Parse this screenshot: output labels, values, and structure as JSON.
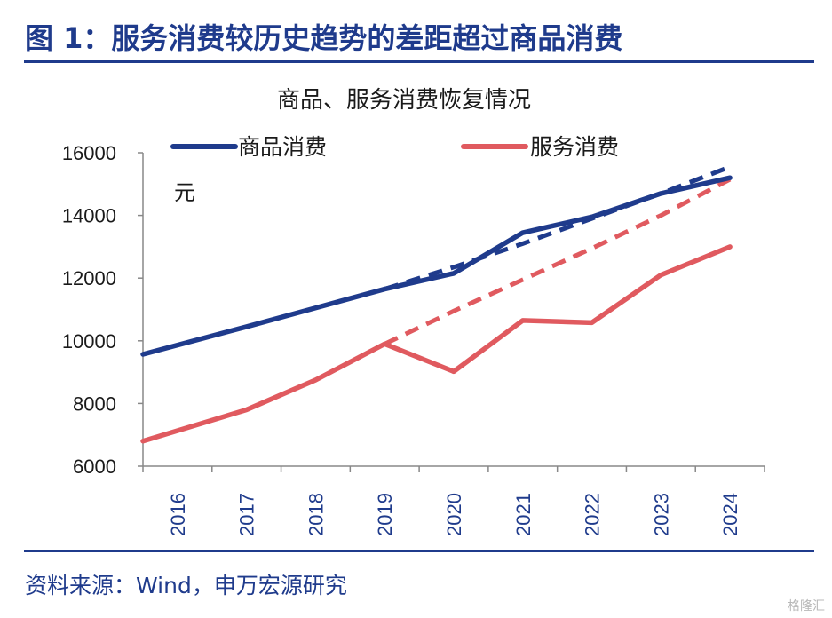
{
  "figure_title": "图 1：服务消费较历史趋势的差距超过商品消费",
  "source_note": "资料来源：Wind，申万宏源研究",
  "watermark": "格隆汇",
  "chart_data": {
    "type": "line",
    "title": "商品、服务消费恢复情况",
    "unit": "元",
    "categories": [
      "2016",
      "2017",
      "2018",
      "2019",
      "2020",
      "2021",
      "2022",
      "2023",
      "2024"
    ],
    "ylim": [
      6000,
      16000
    ],
    "yticks": [
      6000,
      8000,
      10000,
      12000,
      14000,
      16000
    ],
    "grid": false,
    "legend_position": "top",
    "series": [
      {
        "name": "商品消费",
        "color": "#1f3b8c",
        "style": "solid",
        "values": [
          9570,
          10450,
          11050,
          11650,
          12150,
          13450,
          13950,
          14700,
          15200
        ]
      },
      {
        "name": "服务消费",
        "color": "#e05a5f",
        "style": "solid",
        "values": [
          6800,
          7800,
          8750,
          9900,
          9020,
          10650,
          10580,
          12100,
          13000
        ]
      }
    ],
    "trend_series": [
      {
        "color": "#1f3b8c",
        "style": "dashed",
        "x_start": "2019",
        "x_end": "2024",
        "values": [
          11650,
          12350,
          13100,
          13900,
          14700,
          15550
        ]
      },
      {
        "color": "#e05a5f",
        "style": "dashed",
        "x_start": "2019",
        "x_end": "2024",
        "values": [
          9900,
          10950,
          11950,
          12950,
          14000,
          15150
        ]
      }
    ]
  }
}
